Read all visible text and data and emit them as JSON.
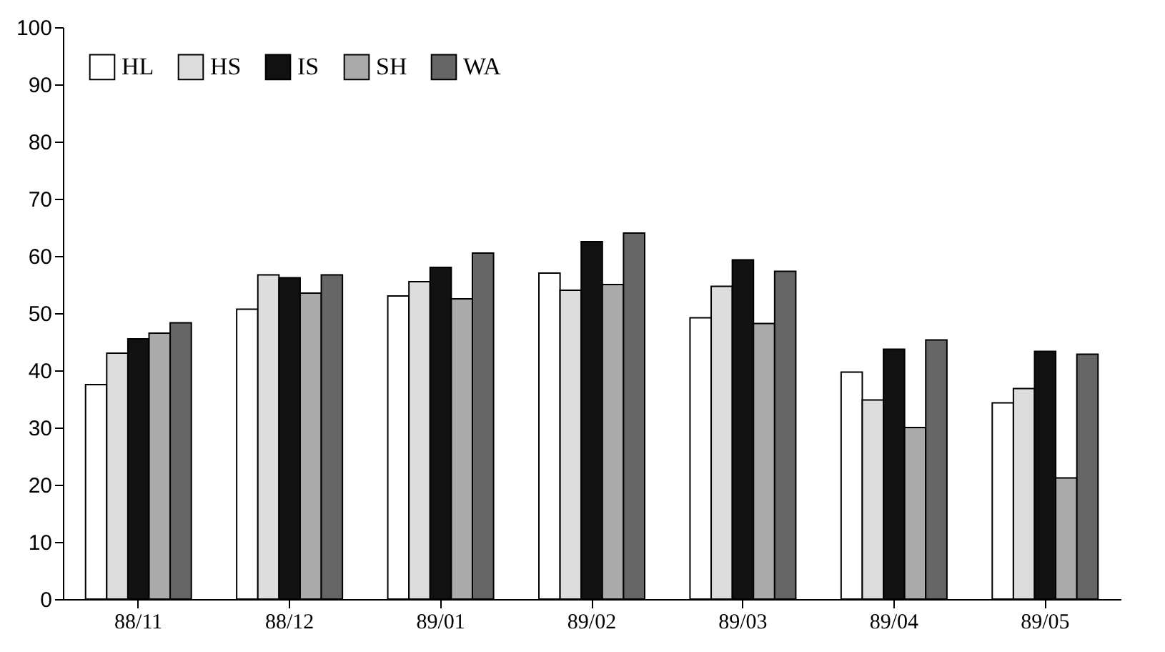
{
  "chart_data": {
    "type": "bar",
    "categories": [
      "88/11",
      "88/12",
      "89/01",
      "89/02",
      "89/03",
      "89/04",
      "89/05"
    ],
    "series": [
      {
        "name": "HL",
        "color": "#ffffff",
        "values": [
          37.5,
          50.7,
          53,
          57,
          49.2,
          39.7,
          34.3
        ]
      },
      {
        "name": "HS",
        "color": "#dddddd",
        "values": [
          43,
          56.7,
          55.5,
          54,
          54.7,
          34.8,
          36.8
        ]
      },
      {
        "name": "IS",
        "color": "#111111",
        "values": [
          45.5,
          56.2,
          58,
          62.5,
          59.3,
          43.7,
          43.3
        ]
      },
      {
        "name": "SH",
        "color": "#aaaaaa",
        "values": [
          46.5,
          53.5,
          52.5,
          55,
          48.2,
          30,
          21.2
        ]
      },
      {
        "name": "WA",
        "color": "#666666",
        "values": [
          48.3,
          56.7,
          60.5,
          64,
          57.3,
          45.3,
          42.8
        ]
      }
    ],
    "ylim": [
      0,
      100
    ],
    "yticks": [
      0,
      10,
      20,
      30,
      40,
      50,
      60,
      70,
      80,
      90,
      100
    ],
    "grid": false,
    "legend": "top left"
  }
}
